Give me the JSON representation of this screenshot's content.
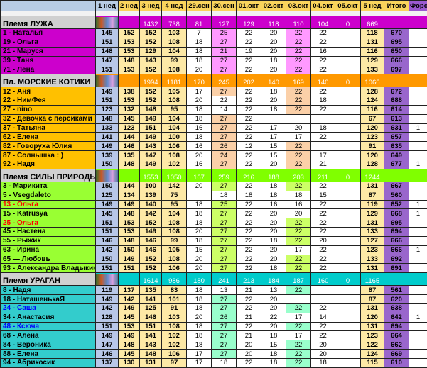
{
  "columns": [
    "1 нед",
    "2 нед",
    "3 нед",
    "4 нед",
    "29.сен",
    "30.сен",
    "01.окт",
    "02.окт",
    "03.окт",
    "04.окт",
    "05.окт",
    "5 нед",
    "Итого",
    "Форс"
  ],
  "colors": {
    "header": "#f9d45c",
    "week1": "#b8c7e8",
    "weeks": "#fde9a6",
    "total": "#9966cc",
    "red_name": "#ff0000",
    "blue_name": "#0000ff"
  },
  "groups": [
    {
      "title": "Племя ЛУЖА",
      "bg": "#cc00cc",
      "name_bg": "#cc00cc",
      "hl": "#ff99ff",
      "totals": [
        "",
        "",
        "1432",
        "738",
        "81",
        "127",
        "129",
        "118",
        "110",
        "104",
        "0",
        "669",
        "",
        ""
      ],
      "rows": [
        {
          "name": "1 - Наталья",
          "values": [
            "145",
            "152",
            "152",
            "103",
            "7",
            "25",
            "22",
            "20",
            "22",
            "22",
            "",
            "118",
            "670",
            ""
          ],
          "hl": [
            5,
            8
          ]
        },
        {
          "name": "19 - Ольга",
          "values": [
            "151",
            "153",
            "152",
            "108",
            "18",
            "27",
            "22",
            "20",
            "22",
            "22",
            "",
            "131",
            "695",
            ""
          ],
          "hl": [
            5,
            8
          ]
        },
        {
          "name": "21 - Маруся",
          "values": [
            "148",
            "153",
            "129",
            "104",
            "18",
            "21",
            "19",
            "20",
            "22",
            "16",
            "",
            "116",
            "650",
            ""
          ],
          "hl": [
            5,
            8
          ]
        },
        {
          "name": "39 - Таня",
          "values": [
            "147",
            "148",
            "143",
            "99",
            "18",
            "27",
            "22",
            "18",
            "22",
            "22",
            "",
            "129",
            "666",
            ""
          ],
          "hl": [
            5,
            8
          ]
        },
        {
          "name": "71 - Лена",
          "values": [
            "151",
            "153",
            "152",
            "108",
            "20",
            "27",
            "22",
            "20",
            "22",
            "22",
            "",
            "133",
            "697",
            ""
          ],
          "hl": [
            5,
            8
          ]
        }
      ]
    },
    {
      "title": "Пл. МОРСКИЕ КОТИКИ",
      "bg": "#ff9900",
      "name_bg": "#ffc000",
      "hl": "#fbd0a8",
      "totals": [
        "",
        "",
        "1994",
        "1181",
        "170",
        "245",
        "202",
        "140",
        "169",
        "140",
        "0",
        "1066",
        "",
        ""
      ],
      "rows": [
        {
          "name": "12 - Аня",
          "values": [
            "149",
            "138",
            "152",
            "105",
            "17",
            "27",
            "22",
            "18",
            "22",
            "22",
            "",
            "128",
            "672",
            ""
          ],
          "hl": [
            5,
            8
          ]
        },
        {
          "name": "22 - НимФея",
          "values": [
            "151",
            "153",
            "152",
            "108",
            "20",
            "22",
            "22",
            "20",
            "22",
            "18",
            "",
            "124",
            "688",
            ""
          ],
          "hl": [
            8
          ]
        },
        {
          "name": "27 - nino",
          "values": [
            "123",
            "132",
            "148",
            "95",
            "18",
            "14",
            "22",
            "18",
            "22",
            "22",
            "",
            "116",
            "614",
            ""
          ],
          "hl": [
            8
          ]
        },
        {
          "name": "32 - Девочка с персиками",
          "values": [
            "148",
            "145",
            "149",
            "104",
            "18",
            "27",
            "22",
            "",
            "",
            "",
            "",
            "67",
            "613",
            ""
          ],
          "hl": [
            5
          ]
        },
        {
          "name": "37 - Татьяна",
          "values": [
            "133",
            "123",
            "151",
            "104",
            "16",
            "27",
            "22",
            "17",
            "20",
            "18",
            "",
            "120",
            "631",
            "1"
          ],
          "hl": [
            5
          ]
        },
        {
          "name": "62 - Елена",
          "values": [
            "141",
            "144",
            "149",
            "100",
            "18",
            "27",
            "22",
            "17",
            "17",
            "22",
            "",
            "123",
            "657",
            ""
          ],
          "hl": [
            5
          ]
        },
        {
          "name": "82 - Говоруха Юлия",
          "values": [
            "149",
            "146",
            "143",
            "106",
            "16",
            "26",
            "12",
            "15",
            "22",
            "",
            "",
            "91",
            "635",
            ""
          ],
          "hl": [
            5,
            8
          ]
        },
        {
          "name": "87 - Солнышка : )",
          "values": [
            "139",
            "135",
            "147",
            "108",
            "20",
            "24",
            "22",
            "15",
            "22",
            "17",
            "",
            "120",
            "649",
            ""
          ],
          "hl": [
            5,
            8
          ]
        },
        {
          "name": "92 - Надя",
          "values": [
            "150",
            "148",
            "149",
            "102",
            "16",
            "27",
            "22",
            "20",
            "22",
            "21",
            "",
            "128",
            "677",
            "1"
          ],
          "hl": [
            5,
            8
          ]
        }
      ]
    },
    {
      "title": "Племя СИЛЫ ПРИРОДЫ",
      "bg": "#80ff00",
      "name_bg": "#99ff33",
      "hl": "#ccff66",
      "totals": [
        "",
        "",
        "1553",
        "1050",
        "167",
        "259",
        "216",
        "188",
        "203",
        "211",
        "0",
        "1244",
        "",
        ""
      ],
      "rows": [
        {
          "name": "3 - Марикита",
          "values": [
            "150",
            "144",
            "100",
            "142",
            "20",
            "27",
            "22",
            "18",
            "22",
            "22",
            "",
            "131",
            "667",
            ""
          ],
          "hl": [
            5,
            8
          ]
        },
        {
          "name": "5 - Vsegdaleto",
          "values": [
            "125",
            "134",
            "139",
            "75",
            "",
            "18",
            "18",
            "18",
            "18",
            "15",
            "",
            "87",
            "560",
            ""
          ],
          "hl": []
        },
        {
          "name": "13 - Ольга",
          "values": [
            "149",
            "149",
            "140",
            "95",
            "18",
            "25",
            "22",
            "16",
            "16",
            "22",
            "",
            "119",
            "652",
            "1"
          ],
          "hl": [
            5
          ],
          "color": "red"
        },
        {
          "name": "15 - Katrusya",
          "values": [
            "145",
            "148",
            "142",
            "104",
            "18",
            "27",
            "22",
            "20",
            "20",
            "22",
            "",
            "129",
            "668",
            "1"
          ],
          "hl": [
            5
          ]
        },
        {
          "name": "25 - Ольга",
          "values": [
            "151",
            "153",
            "152",
            "108",
            "18",
            "27",
            "22",
            "20",
            "22",
            "22",
            "",
            "131",
            "695",
            ""
          ],
          "hl": [
            5,
            8
          ],
          "color": "red"
        },
        {
          "name": "45 - Настена",
          "values": [
            "151",
            "153",
            "149",
            "108",
            "20",
            "27",
            "22",
            "20",
            "22",
            "22",
            "",
            "133",
            "694",
            ""
          ],
          "hl": [
            5,
            8
          ]
        },
        {
          "name": "55 - Рыжик",
          "values": [
            "146",
            "148",
            "146",
            "99",
            "18",
            "27",
            "22",
            "18",
            "22",
            "20",
            "",
            "127",
            "666",
            ""
          ],
          "hl": [
            5,
            8
          ]
        },
        {
          "name": "63 - Ирина",
          "values": [
            "142",
            "150",
            "146",
            "105",
            "15",
            "27",
            "22",
            "20",
            "17",
            "22",
            "",
            "123",
            "666",
            "1"
          ],
          "hl": [
            5
          ]
        },
        {
          "name": "65 — Любовь",
          "values": [
            "150",
            "149",
            "152",
            "108",
            "20",
            "27",
            "22",
            "20",
            "22",
            "22",
            "",
            "133",
            "692",
            ""
          ],
          "hl": [
            5,
            8
          ]
        },
        {
          "name": "93 - Александра Владыкина",
          "values": [
            "151",
            "151",
            "152",
            "106",
            "20",
            "27",
            "22",
            "18",
            "22",
            "22",
            "",
            "131",
            "691",
            ""
          ],
          "hl": [
            5,
            8
          ]
        }
      ]
    },
    {
      "title": "Племя УРАГАН",
      "bg": "#00cccc",
      "name_bg": "#33cccc",
      "hl": "#99ffcc",
      "totals": [
        "",
        "",
        "1614",
        "986",
        "180",
        "241",
        "213",
        "184",
        "187",
        "160",
        "0",
        "1165",
        "",
        ""
      ],
      "rows": [
        {
          "name": "8 - Надя",
          "values": [
            "119",
            "137",
            "135",
            "83",
            "18",
            "13",
            "21",
            "13",
            "22",
            "",
            "",
            "87",
            "561",
            ""
          ],
          "hl": [
            8
          ]
        },
        {
          "name": "18 - НаташенькаЯ",
          "values": [
            "149",
            "142",
            "141",
            "101",
            "18",
            "27",
            "22",
            "20",
            "",
            "",
            "",
            "87",
            "620",
            ""
          ],
          "hl": [
            5
          ]
        },
        {
          "name": "24 - Саша",
          "values": [
            "142",
            "149",
            "125",
            "91",
            "18",
            "27",
            "22",
            "20",
            "22",
            "22",
            "",
            "131",
            "638",
            ""
          ],
          "hl": [
            5,
            8
          ],
          "color": "blue"
        },
        {
          "name": "34 - Анастасия",
          "values": [
            "128",
            "145",
            "146",
            "103",
            "20",
            "26",
            "21",
            "22",
            "17",
            "14",
            "",
            "120",
            "642",
            "1"
          ],
          "hl": [
            5
          ]
        },
        {
          "name": "48 - Ксюча",
          "values": [
            "151",
            "153",
            "151",
            "108",
            "18",
            "27",
            "22",
            "20",
            "22",
            "22",
            "",
            "131",
            "694",
            ""
          ],
          "hl": [
            5,
            8
          ],
          "color": "blue"
        },
        {
          "name": "68 - Алена",
          "values": [
            "149",
            "149",
            "141",
            "102",
            "18",
            "27",
            "21",
            "18",
            "17",
            "22",
            "",
            "123",
            "664",
            ""
          ],
          "hl": [
            5
          ]
        },
        {
          "name": "84 - Вероника",
          "values": [
            "147",
            "148",
            "143",
            "102",
            "18",
            "27",
            "20",
            "15",
            "22",
            "20",
            "",
            "122",
            "662",
            ""
          ],
          "hl": [
            5,
            8
          ]
        },
        {
          "name": "88 - Елена",
          "values": [
            "146",
            "145",
            "148",
            "106",
            "17",
            "27",
            "20",
            "18",
            "22",
            "20",
            "",
            "124",
            "669",
            ""
          ],
          "hl": [
            5,
            8
          ]
        },
        {
          "name": "94 - Абрикосик",
          "values": [
            "137",
            "130",
            "131",
            "97",
            "17",
            "18",
            "22",
            "18",
            "22",
            "18",
            "",
            "115",
            "610",
            ""
          ],
          "hl": [
            8
          ]
        }
      ]
    }
  ]
}
